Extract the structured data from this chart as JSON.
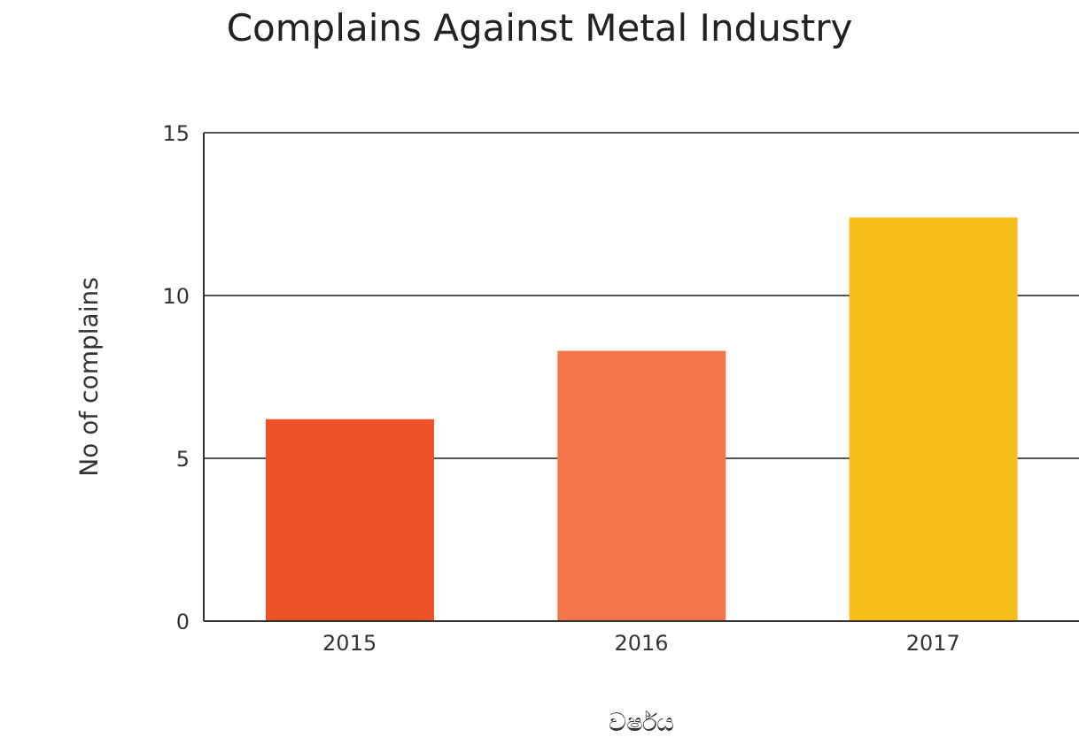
{
  "chart_data": {
    "type": "bar",
    "title": "Complains Against Metal Industry",
    "xlabel": "වර්ෂය",
    "ylabel": "No of complains",
    "categories": [
      "2015",
      "2016",
      "2017"
    ],
    "values": [
      6.2,
      8.3,
      12.4
    ],
    "colors": [
      "#ee5229",
      "#f4754b",
      "#f7be19"
    ],
    "ylim": [
      0,
      15
    ],
    "yticks": [
      0,
      5,
      10,
      15
    ],
    "grid": "y"
  }
}
